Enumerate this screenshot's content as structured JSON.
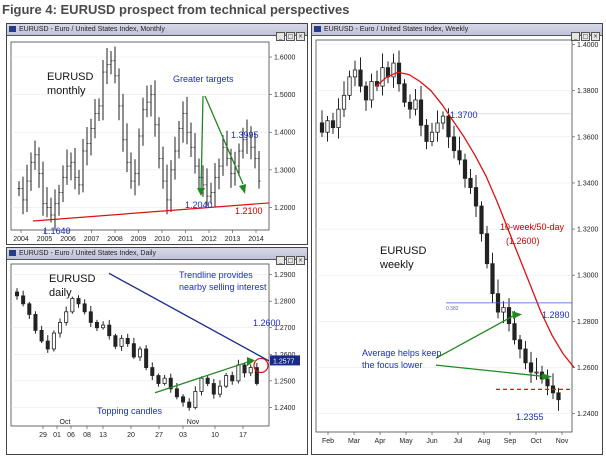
{
  "title": "Figure 4: EURUSD prospect from technical perspectives",
  "panels": {
    "monthly": {
      "header": "EURUSD - Euro / United States Index, Monthly"
    },
    "daily": {
      "header": "EURUSD - Euro / United States Index, Daily"
    },
    "weekly": {
      "header": "EURUSD - Euro / United States Index, Weekly"
    }
  },
  "colors": {
    "candle": "#222222",
    "trend_red": "#dd1111",
    "trend_blue": "#1a2a8a",
    "arrow_green": "#228822",
    "annot_blue": "#1a2fbf",
    "annot_red": "#cc0000"
  },
  "chart_data": [
    {
      "type": "candlestick",
      "name": "EURUSD monthly",
      "label": "EURUSD\nmonthly",
      "x_ticks": [
        "2004",
        "2005",
        "2006",
        "2007",
        "2008",
        "2009",
        "2010",
        "2011",
        "2012",
        "2013",
        "2014"
      ],
      "y_ticks": [
        "1.6000",
        "1.5000",
        "1.4000",
        "1.3000",
        "1.2000"
      ],
      "ylim": [
        1.14,
        1.64
      ],
      "candles_close": [
        1.25,
        1.22,
        1.27,
        1.32,
        1.34,
        1.29,
        1.21,
        1.2,
        1.18,
        1.21,
        1.24,
        1.28,
        1.31,
        1.32,
        1.28,
        1.26,
        1.35,
        1.37,
        1.41,
        1.45,
        1.47,
        1.56,
        1.58,
        1.59,
        1.55,
        1.47,
        1.38,
        1.32,
        1.27,
        1.29,
        1.39,
        1.46,
        1.48,
        1.5,
        1.42,
        1.33,
        1.27,
        1.22,
        1.3,
        1.35,
        1.41,
        1.45,
        1.4,
        1.36,
        1.31,
        1.28,
        1.26,
        1.23,
        1.24,
        1.28,
        1.31,
        1.36,
        1.33,
        1.29,
        1.31,
        1.35,
        1.38,
        1.39,
        1.36,
        1.33,
        1.27
      ],
      "annotations": [
        "Greater targets",
        "1.3995",
        "1.2040",
        "1.2100",
        "1.1640"
      ]
    },
    {
      "type": "candlestick",
      "name": "EURUSD daily",
      "label": "EURUSD\ndaily",
      "x_ticks": [
        "29",
        "01",
        "06",
        "08",
        "13",
        "20",
        "27",
        "03",
        "10",
        "17",
        "Oct",
        "Nov"
      ],
      "y_ticks": [
        "1.2900",
        "1.2800",
        "1.2700",
        "1.2600",
        "1.2577",
        "1.2500",
        "1.2400"
      ],
      "ylim": [
        1.233,
        1.294
      ],
      "candles_close": [
        1.282,
        1.279,
        1.275,
        1.269,
        1.265,
        1.262,
        1.268,
        1.272,
        1.276,
        1.281,
        1.279,
        1.276,
        1.272,
        1.27,
        1.271,
        1.267,
        1.263,
        1.266,
        1.264,
        1.259,
        1.262,
        1.255,
        1.252,
        1.249,
        1.251,
        1.247,
        1.244,
        1.242,
        1.24,
        1.246,
        1.251,
        1.249,
        1.245,
        1.248,
        1.252,
        1.25,
        1.256,
        1.253,
        1.255,
        1.249
      ],
      "annotations": [
        "Trendline provides nearby selling interest",
        "1.2600",
        "Topping candles"
      ]
    },
    {
      "type": "candlestick",
      "name": "EURUSD weekly",
      "label": "EURUSD\nweekly",
      "x_ticks": [
        "Feb",
        "Mar",
        "Apr",
        "May",
        "Jun",
        "Jul",
        "Aug",
        "Sep",
        "Oct",
        "Nov"
      ],
      "y_ticks": [
        "1.4000",
        "1.3800",
        "1.3600",
        "1.3400",
        "1.3200",
        "1.3000",
        "1.2800",
        "1.2600",
        "1.2400"
      ],
      "ylim": [
        1.232,
        1.402
      ],
      "candles_close": [
        1.362,
        1.367,
        1.364,
        1.372,
        1.378,
        1.386,
        1.389,
        1.382,
        1.376,
        1.384,
        1.382,
        1.39,
        1.386,
        1.392,
        1.383,
        1.375,
        1.372,
        1.376,
        1.365,
        1.358,
        1.362,
        1.366,
        1.369,
        1.36,
        1.354,
        1.35,
        1.342,
        1.338,
        1.33,
        1.318,
        1.305,
        1.292,
        1.284,
        1.286,
        1.279,
        1.272,
        1.268,
        1.262,
        1.258,
        1.258,
        1.255,
        1.252,
        1.249,
        1.246
      ],
      "annotations": [
        "1.3700",
        "10-week/50-day (1.2600)",
        "1.2890",
        "Average helps keep the focus lower",
        "1.2355",
        "0.382"
      ]
    }
  ]
}
